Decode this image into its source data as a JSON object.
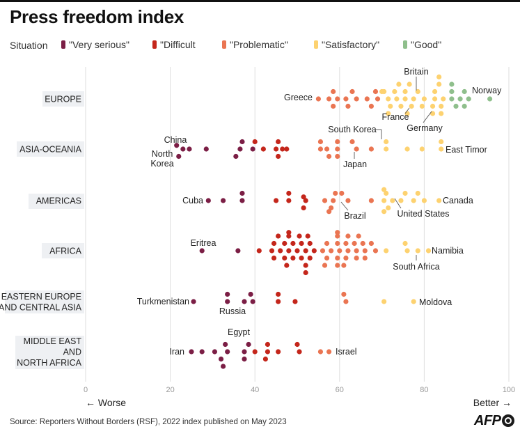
{
  "title": "Press freedom index",
  "legend": {
    "title": "Situation",
    "items": [
      {
        "key": "very_serious",
        "label": "\"Very serious\"",
        "color": "#7b1e45"
      },
      {
        "key": "difficult",
        "label": "\"Difficult",
        "color": "#c4261b"
      },
      {
        "key": "problematic",
        "label": "\"Problematic\"",
        "color": "#ea7552"
      },
      {
        "key": "satisfactory",
        "label": "\"Satisfactory\"",
        "color": "#fdd270"
      },
      {
        "key": "good",
        "label": "\"Good\"",
        "color": "#8fbf8c"
      }
    ]
  },
  "footer": {
    "source": "Source: Reporters Without Borders (RSF), 2022 index published on May 2023",
    "logo": "AFP"
  },
  "chart_data": {
    "type": "scatter",
    "title": "Press freedom index",
    "xlim": [
      0,
      100
    ],
    "x_ticks": [
      0,
      20,
      40,
      60,
      80,
      100
    ],
    "x_tick_labels": [
      "0",
      "20",
      "40",
      "60",
      "80",
      "100"
    ],
    "x_left_label": "← Worse",
    "x_right_label": "Better →",
    "grid": true,
    "legend_position": "top",
    "categories": [
      "EUROPE",
      "ASIA-OCEANIA",
      "AMERICAS",
      "AFRICA",
      "EASTERN EUROPE AND CENTRAL ASIA",
      "MIDDLE EAST AND NORTH AFRICA"
    ],
    "category_labels": [
      [
        "EUROPE"
      ],
      [
        "ASIA-OCEANIA"
      ],
      [
        "AMERICAS"
      ],
      [
        "AFRICA"
      ],
      [
        "EASTERN EUROPE",
        "AND CENTRAL ASIA"
      ],
      [
        "MIDDLE EAST",
        "AND",
        "NORTH AFRICA"
      ]
    ],
    "series": [
      {
        "region": "EUROPE",
        "points": [
          [
            55.0,
            0
          ],
          [
            57.5,
            0
          ],
          [
            59.5,
            0
          ],
          [
            61.5,
            0
          ],
          [
            64.0,
            0
          ],
          [
            66.5,
            0
          ],
          [
            69.0,
            0
          ],
          [
            58.5,
            -1
          ],
          [
            63.0,
            -1
          ],
          [
            68.5,
            -1
          ],
          [
            70.0,
            -1
          ],
          [
            58.5,
            1
          ],
          [
            62.0,
            1
          ],
          [
            67.5,
            1
          ],
          [
            71.5,
            0
          ],
          [
            73.5,
            0
          ],
          [
            75.5,
            0
          ],
          [
            77.5,
            0
          ],
          [
            80.0,
            0
          ],
          [
            82.5,
            0
          ],
          [
            84.5,
            0
          ],
          [
            70.5,
            -1
          ],
          [
            73.0,
            -1
          ],
          [
            75.5,
            -1
          ],
          [
            78.5,
            -1
          ],
          [
            82.5,
            -1
          ],
          [
            72.0,
            1
          ],
          [
            74.5,
            1
          ],
          [
            77.0,
            1
          ],
          [
            79.5,
            1
          ],
          [
            82.0,
            1
          ],
          [
            84.0,
            1
          ],
          [
            74.0,
            -2
          ],
          [
            76.5,
            -2
          ],
          [
            83.5,
            -2
          ],
          [
            71.5,
            2
          ],
          [
            76.0,
            2
          ],
          [
            82.0,
            2
          ],
          [
            84.0,
            2
          ],
          [
            83.5,
            -3
          ],
          [
            86.5,
            0
          ],
          [
            88.5,
            0
          ],
          [
            90.5,
            0
          ],
          [
            95.5,
            0
          ],
          [
            86.5,
            -1
          ],
          [
            89.5,
            -1
          ],
          [
            86.5,
            -2
          ],
          [
            87.5,
            1
          ],
          [
            89.5,
            1
          ]
        ]
      },
      {
        "region": "ASIA-OCEANIA",
        "points": [
          [
            21.5,
            -0.5
          ],
          [
            23.0,
            0
          ],
          [
            24.5,
            0
          ],
          [
            28.5,
            0
          ],
          [
            22.0,
            1
          ],
          [
            36.5,
            0
          ],
          [
            39.5,
            0
          ],
          [
            42.0,
            0
          ],
          [
            45.0,
            0
          ],
          [
            47.5,
            0
          ],
          [
            37.0,
            -1
          ],
          [
            40.0,
            -1
          ],
          [
            45.5,
            -1
          ],
          [
            46.5,
            0
          ],
          [
            35.5,
            1
          ],
          [
            45.5,
            1
          ],
          [
            55.5,
            0
          ],
          [
            57.0,
            0
          ],
          [
            59.5,
            0
          ],
          [
            64.0,
            0
          ],
          [
            67.5,
            0
          ],
          [
            55.5,
            -1
          ],
          [
            59.5,
            -1
          ],
          [
            63.0,
            -1
          ],
          [
            57.5,
            1
          ],
          [
            59.5,
            1
          ],
          [
            71.0,
            0
          ],
          [
            76.0,
            0
          ],
          [
            79.5,
            0
          ],
          [
            84.0,
            0
          ],
          [
            71.0,
            -1
          ],
          [
            84.0,
            -1
          ]
        ]
      },
      {
        "region": "AMERICAS",
        "points": [
          [
            29.0,
            0
          ],
          [
            32.5,
            0
          ],
          [
            37.0,
            0
          ],
          [
            37.0,
            -1
          ],
          [
            45.0,
            0
          ],
          [
            48.0,
            0
          ],
          [
            52.0,
            0
          ],
          [
            48.0,
            -1
          ],
          [
            51.5,
            -0.5
          ],
          [
            51.5,
            1
          ],
          [
            56.5,
            0
          ],
          [
            58.5,
            0
          ],
          [
            62.0,
            0
          ],
          [
            67.5,
            0
          ],
          [
            59.0,
            -1
          ],
          [
            60.5,
            -1
          ],
          [
            58.0,
            1
          ],
          [
            57.5,
            1.5
          ],
          [
            70.5,
            0
          ],
          [
            72.5,
            0
          ],
          [
            74.5,
            0
          ],
          [
            77.5,
            0
          ],
          [
            80.0,
            0
          ],
          [
            83.5,
            0
          ],
          [
            71.0,
            -1
          ],
          [
            75.5,
            -1
          ],
          [
            78.5,
            -1
          ],
          [
            70.5,
            -1.5
          ],
          [
            71.5,
            1
          ],
          [
            70.5,
            1.5
          ]
        ]
      },
      {
        "region": "AFRICA",
        "points": [
          [
            27.5,
            0
          ],
          [
            36.0,
            0
          ],
          [
            41.0,
            0
          ],
          [
            44.0,
            0
          ],
          [
            46.0,
            0
          ],
          [
            48.0,
            0
          ],
          [
            50.0,
            0
          ],
          [
            52.0,
            0
          ],
          [
            54.0,
            0
          ],
          [
            44.5,
            -1
          ],
          [
            47.0,
            -1
          ],
          [
            49.0,
            -1
          ],
          [
            51.0,
            -1
          ],
          [
            53.0,
            -1
          ],
          [
            44.5,
            1
          ],
          [
            47.0,
            1
          ],
          [
            49.0,
            1
          ],
          [
            51.0,
            1
          ],
          [
            53.0,
            1
          ],
          [
            45.5,
            -2
          ],
          [
            48.0,
            -2
          ],
          [
            50.5,
            -2
          ],
          [
            52.5,
            -2
          ],
          [
            47.5,
            2
          ],
          [
            52.0,
            2
          ],
          [
            52.0,
            3
          ],
          [
            48.0,
            -2.5
          ],
          [
            56.0,
            0
          ],
          [
            58.0,
            0
          ],
          [
            60.0,
            0
          ],
          [
            62.0,
            0
          ],
          [
            64.0,
            0
          ],
          [
            66.0,
            0
          ],
          [
            68.5,
            0
          ],
          [
            57.0,
            -1
          ],
          [
            59.5,
            -1
          ],
          [
            61.5,
            -1
          ],
          [
            63.5,
            -1
          ],
          [
            65.5,
            -1
          ],
          [
            67.5,
            -1
          ],
          [
            57.0,
            1
          ],
          [
            59.5,
            1
          ],
          [
            61.5,
            1
          ],
          [
            64.0,
            1
          ],
          [
            66.0,
            1
          ],
          [
            59.5,
            -2
          ],
          [
            62.0,
            -2
          ],
          [
            64.5,
            -2
          ],
          [
            56.5,
            2
          ],
          [
            59.5,
            2
          ],
          [
            61.0,
            2
          ],
          [
            59.5,
            -2.5
          ],
          [
            71.0,
            0
          ],
          [
            76.0,
            0
          ],
          [
            78.5,
            0
          ],
          [
            81.0,
            0
          ],
          [
            75.5,
            -1
          ]
        ]
      },
      {
        "region": "EASTERN EUROPE AND CENTRAL ASIA",
        "points": [
          [
            25.5,
            0
          ],
          [
            33.5,
            0
          ],
          [
            37.5,
            0
          ],
          [
            39.5,
            0
          ],
          [
            33.5,
            -1
          ],
          [
            39.0,
            -1
          ],
          [
            45.5,
            0
          ],
          [
            49.5,
            0
          ],
          [
            45.5,
            -1
          ],
          [
            61.0,
            -1
          ],
          [
            61.5,
            0
          ],
          [
            70.5,
            0
          ],
          [
            77.5,
            0
          ]
        ]
      },
      {
        "region": "MIDDLE EAST AND NORTH AFRICA",
        "points": [
          [
            25.0,
            0
          ],
          [
            27.5,
            0
          ],
          [
            30.5,
            0
          ],
          [
            33.5,
            0
          ],
          [
            37.5,
            0
          ],
          [
            33.0,
            -1
          ],
          [
            38.5,
            -1
          ],
          [
            32.0,
            1
          ],
          [
            37.5,
            1
          ],
          [
            32.5,
            2
          ],
          [
            40.0,
            0
          ],
          [
            43.0,
            0
          ],
          [
            45.5,
            0
          ],
          [
            50.5,
            0
          ],
          [
            43.0,
            -1
          ],
          [
            50.0,
            -1
          ],
          [
            42.5,
            1
          ],
          [
            55.5,
            0
          ],
          [
            57.5,
            0
          ]
        ]
      }
    ],
    "annotations": [
      {
        "region": "EUROPE",
        "text": "Greece"
      },
      {
        "region": "EUROPE",
        "text": "Britain"
      },
      {
        "region": "EUROPE",
        "text": "Norway"
      },
      {
        "region": "EUROPE",
        "text": "France"
      },
      {
        "region": "EUROPE",
        "text": "Germany"
      },
      {
        "region": "ASIA-OCEANIA",
        "text": "China"
      },
      {
        "region": "ASIA-OCEANIA",
        "text": "North"
      },
      {
        "region": "ASIA-OCEANIA",
        "text": "Korea"
      },
      {
        "region": "ASIA-OCEANIA",
        "text": "South Korea"
      },
      {
        "region": "ASIA-OCEANIA",
        "text": "Japan"
      },
      {
        "region": "ASIA-OCEANIA",
        "text": "East Timor"
      },
      {
        "region": "AMERICAS",
        "text": "Cuba"
      },
      {
        "region": "AMERICAS",
        "text": "Brazil"
      },
      {
        "region": "AMERICAS",
        "text": "United States"
      },
      {
        "region": "AMERICAS",
        "text": "Canada"
      },
      {
        "region": "AFRICA",
        "text": "Eritrea"
      },
      {
        "region": "AFRICA",
        "text": "Namibia"
      },
      {
        "region": "AFRICA",
        "text": "South Africa"
      },
      {
        "region": "EASTERN EUROPE AND CENTRAL ASIA",
        "text": "Turkmenistan"
      },
      {
        "region": "EASTERN EUROPE AND CENTRAL ASIA",
        "text": "Russia"
      },
      {
        "region": "EASTERN EUROPE AND CENTRAL ASIA",
        "text": "Moldova"
      },
      {
        "region": "MIDDLE EAST AND NORTH AFRICA",
        "text": "Egypt"
      },
      {
        "region": "MIDDLE EAST AND NORTH AFRICA",
        "text": "Iran"
      },
      {
        "region": "MIDDLE EAST AND NORTH AFRICA",
        "text": "Israel"
      }
    ]
  }
}
